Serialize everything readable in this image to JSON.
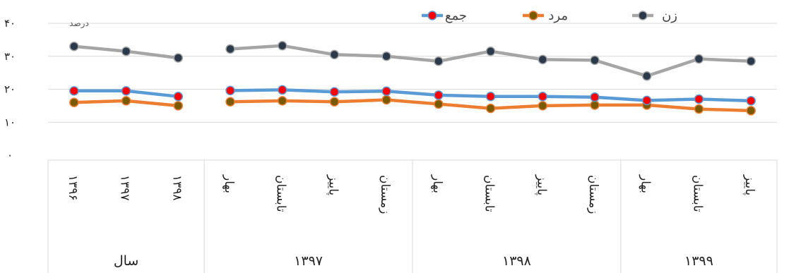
{
  "chart_data": {
    "type": "line",
    "ylabel": "درصد",
    "ylim": [
      0,
      40
    ],
    "yticks": [
      "۰",
      "۱۰",
      "۲۰",
      "۳۰",
      "۴۰"
    ],
    "categories": [
      "۱۳۹۶",
      "۱۳۹۷",
      "۱۳۹۸",
      "بهار",
      "تابستان",
      "پاییز",
      "زمستان",
      "بهار",
      "تابستان",
      "پاییز",
      "زمستان",
      "بهار",
      "تابستان",
      "پاییز"
    ],
    "groups": [
      {
        "label": "سال",
        "count": 3
      },
      {
        "label": "۱۳۹۷",
        "count": 4
      },
      {
        "label": "۱۳۹۸",
        "count": 4
      },
      {
        "label": "۱۳۹۹",
        "count": 3
      }
    ],
    "series": [
      {
        "name": "زن",
        "color": "#a5a5a5",
        "marker": "#2b3a4a",
        "values": [
          33.0,
          31.5,
          29.5,
          32.2,
          33.2,
          30.5,
          30.0,
          28.5,
          31.5,
          29.0,
          28.8,
          24.0,
          29.2,
          28.5
        ]
      },
      {
        "name": "مرد",
        "color": "#ed7d31",
        "marker": "#7a5a00",
        "values": [
          16.0,
          16.5,
          15.0,
          16.2,
          16.5,
          16.2,
          16.8,
          15.5,
          14.2,
          15.0,
          15.2,
          15.2,
          14.0,
          13.5
        ]
      },
      {
        "name": "جمع",
        "color": "#5b9bd5",
        "marker": "#ff0000",
        "values": [
          19.5,
          19.5,
          17.8,
          19.6,
          19.8,
          19.2,
          19.4,
          18.2,
          17.8,
          17.8,
          17.6,
          16.6,
          17.0,
          16.5
        ]
      }
    ],
    "legend_position": "top-right",
    "grid": true
  }
}
